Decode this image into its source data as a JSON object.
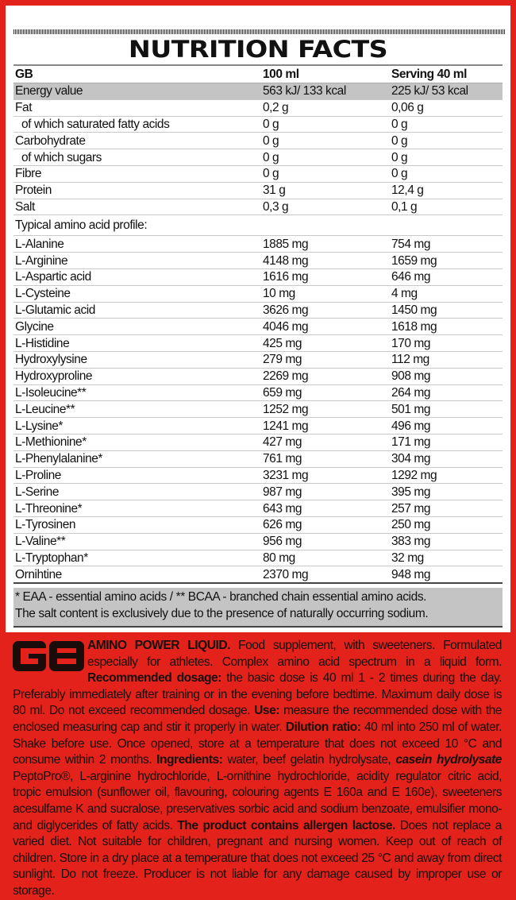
{
  "title": "NUTRITION FACTS",
  "header": {
    "label": "GB",
    "col1": "100 ml",
    "col2": "Serving 40 ml"
  },
  "nutrients": [
    {
      "name": "Energy value",
      "per100": "563 kJ/ 133 kcal",
      "serving": "225 kJ/ 53 kcal",
      "highlight": true
    },
    {
      "name": "Fat",
      "per100": "0,2 g",
      "serving": "0,06 g"
    },
    {
      "name": "of which saturated fatty acids",
      "per100": "0 g",
      "serving": "0 g",
      "sub": true
    },
    {
      "name": "Carbohydrate",
      "per100": "0 g",
      "serving": "0 g"
    },
    {
      "name": "of which sugars",
      "per100": "0 g",
      "serving": "0 g",
      "sub": true
    },
    {
      "name": "Fibre",
      "per100": "0 g",
      "serving": "0 g"
    },
    {
      "name": "Protein",
      "per100": "31 g",
      "serving": "12,4 g"
    },
    {
      "name": "Salt",
      "per100": "0,3 g",
      "serving": "0,1 g"
    }
  ],
  "amino_heading": "Typical amino acid profile:",
  "amino_acids": [
    {
      "name": "L-Alanine",
      "per100": "1885 mg",
      "serving": "754 mg"
    },
    {
      "name": "L-Arginine",
      "per100": "4148 mg",
      "serving": "1659 mg"
    },
    {
      "name": "L-Aspartic acid",
      "per100": "1616 mg",
      "serving": "646 mg"
    },
    {
      "name": "L-Cysteine",
      "per100": "10 mg",
      "serving": "4 mg"
    },
    {
      "name": "L-Glutamic acid",
      "per100": "3626 mg",
      "serving": "1450 mg"
    },
    {
      "name": "Glycine",
      "per100": "4046 mg",
      "serving": "1618 mg"
    },
    {
      "name": "L-Histidine",
      "per100": "425 mg",
      "serving": "170 mg"
    },
    {
      "name": "Hydroxylysine",
      "per100": "279 mg",
      "serving": "112 mg"
    },
    {
      "name": "Hydroxyproline",
      "per100": "2269 mg",
      "serving": "908 mg"
    },
    {
      "name": "L-Isoleucine**",
      "per100": "659 mg",
      "serving": "264 mg"
    },
    {
      "name": "L-Leucine**",
      "per100": "1252 mg",
      "serving": "501 mg"
    },
    {
      "name": "L-Lysine*",
      "per100": "1241 mg",
      "serving": "496 mg"
    },
    {
      "name": "L-Methionine*",
      "per100": "427 mg",
      "serving": "171 mg"
    },
    {
      "name": "L-Phenylalanine*",
      "per100": "761 mg",
      "serving": "304 mg"
    },
    {
      "name": "L-Proline",
      "per100": "3231 mg",
      "serving": "1292 mg"
    },
    {
      "name": "L-Serine",
      "per100": "987 mg",
      "serving": "395 mg"
    },
    {
      "name": "L-Threonine*",
      "per100": "643 mg",
      "serving": "257 mg"
    },
    {
      "name": "L-Tyrosinen",
      "per100": "626 mg",
      "serving": "250 mg"
    },
    {
      "name": "L-Valine**",
      "per100": "956 mg",
      "serving": "383 mg"
    },
    {
      "name": "L-Tryptophan*",
      "per100": "80 mg",
      "serving": "32 mg"
    },
    {
      "name": "Ornihtine",
      "per100": "2370 mg",
      "serving": "948 mg"
    }
  ],
  "footnotes": [
    "* EAA - essential amino acids / ** BCAA - branched chain essential amino acids.",
    "The salt content is exclusively due to the presence of naturally occurring sodium."
  ],
  "logo_text": "GB",
  "info": [
    {
      "t": "AMINO POWER LIQUID.",
      "b": true
    },
    {
      "t": " Food supplement, with sweeteners. Formulated especially for athletes. Complex amino acid spectrum in a liquid form. "
    },
    {
      "t": "Recommended dosage:",
      "b": true
    },
    {
      "t": " the basic dose is 40 ml 1 - 2 times during the day. Preferably immediately after training or in the evening before bedtime. Maximum daily dose is 80 ml. Do not exceed recommended dosage. "
    },
    {
      "t": "Use:",
      "b": true
    },
    {
      "t": " measure the recommended dose with the enclosed measuring cap and stir it properly in water. "
    },
    {
      "t": "Dilution ratio:",
      "b": true
    },
    {
      "t": " 40 ml into 250 ml of water. Shake before use. Once opened, store at a temperature that does not exceed 10 °C and consume within 2 months. "
    },
    {
      "t": "Ingredients:",
      "b": true
    },
    {
      "t": " water, beef gelatin hydrolysate, "
    },
    {
      "t": "casein hydrolysate",
      "b": true,
      "i": true
    },
    {
      "t": " PeptoPro®, L-arginine hydrochloride, L-ornithine hydrochloride, acidity regulator citric acid, tropic emulsion (sunflower oil, flavouring, colouring agents E 160a and E 160e), sweeteners acesulfame K and sucralose, preservatives sorbic acid and sodium benzoate, emulsifier mono- and diglycerides of fatty acids. "
    },
    {
      "t": "The product contains allergen lactose.",
      "b": true
    },
    {
      "t": " Does not replace a varied diet. Not suitable for children, pregnant and nursing women. Keep out of reach of children. Store in a dry place at a temperature that does not exceed 25 °C and away from direct sunlight. Do not freeze. Producer is not liable for any damage caused by improper use or storage."
    }
  ],
  "colors": {
    "brand_red": "#e3231b",
    "row_gray": "#c4c4c4"
  }
}
